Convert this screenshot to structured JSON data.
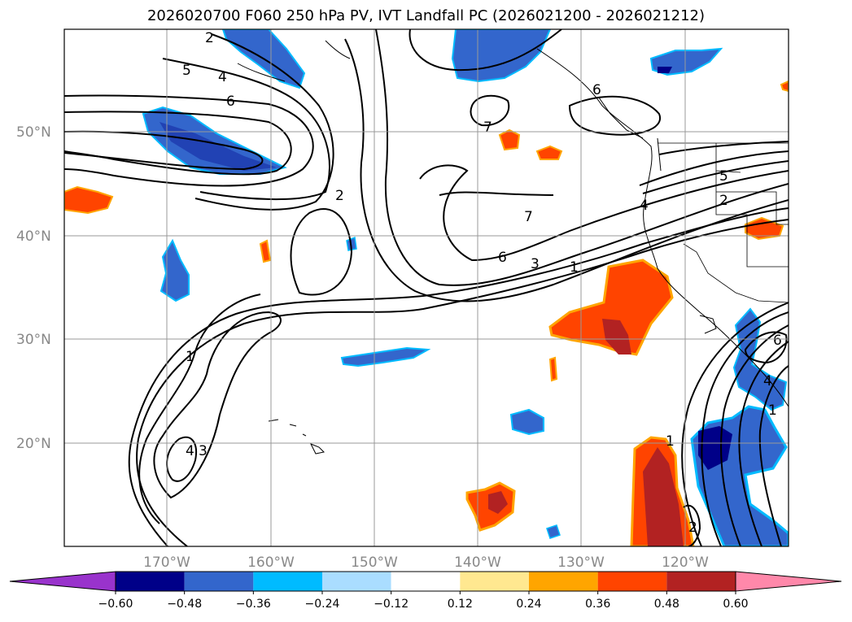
{
  "title": "2026020700 F060 250 hPa PV, IVT Landfall PC (2026021200 - 2026021212)",
  "lat_labels": [
    "50°N",
    "40°N",
    "30°N",
    "20°N"
  ],
  "lon_labels": [
    "170°W",
    "160°W",
    "150°W",
    "140°W",
    "130°W",
    "120°W"
  ],
  "colorbar": {
    "labels": [
      "−0.60",
      "−0.48",
      "−0.36",
      "−0.24",
      "−0.12",
      "0.12",
      "0.24",
      "0.36",
      "0.48",
      "0.60"
    ],
    "colors": [
      "#9933cc",
      "#000088",
      "#3366cc",
      "#00bbff",
      "#aaddff",
      "#ffffff",
      "#ffe890",
      "#ffa500",
      "#ff4400",
      "#b22222",
      "#ff88aa"
    ]
  },
  "contour_labels": [
    "2",
    "5",
    "4",
    "6",
    "2",
    "7",
    "6",
    "7",
    "6",
    "3",
    "1",
    "4",
    "5",
    "2",
    "1",
    "4",
    "3",
    "1",
    "2",
    "4",
    "1",
    "6"
  ]
}
